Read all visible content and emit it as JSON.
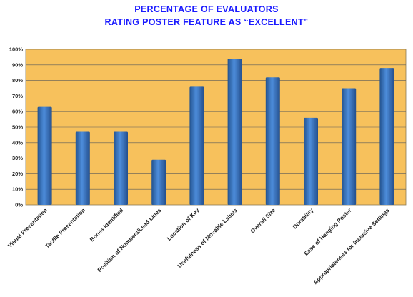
{
  "colors": {
    "plot_background": "#f7c15c",
    "bar": "#3f78c8",
    "title": "#1a1aff"
  },
  "chart_data": {
    "type": "bar",
    "title_lines": [
      "PERCENTAGE OF EVALUATORS",
      "RATING POSTER FEATURE AS “EXCELLENT”"
    ],
    "categories": [
      "Visual Presentation",
      "Tactile Presentation",
      "Bones Identified",
      "Position of Numbers/Lead Lines",
      "Location of Key",
      "Usefulness of Movable Labels",
      "Overall Size",
      "Durability",
      "Ease of Hanging Poster",
      "Appropriateness for Inclusive Settings"
    ],
    "values": [
      63,
      47,
      47,
      29,
      76,
      94,
      82,
      56,
      75,
      88
    ],
    "y_ticks": [
      "0%",
      "10%",
      "20%",
      "30%",
      "40%",
      "50%",
      "60%",
      "70%",
      "80%",
      "90%",
      "100%"
    ],
    "ylim": [
      0,
      100
    ],
    "grid": true,
    "legend": "none"
  }
}
